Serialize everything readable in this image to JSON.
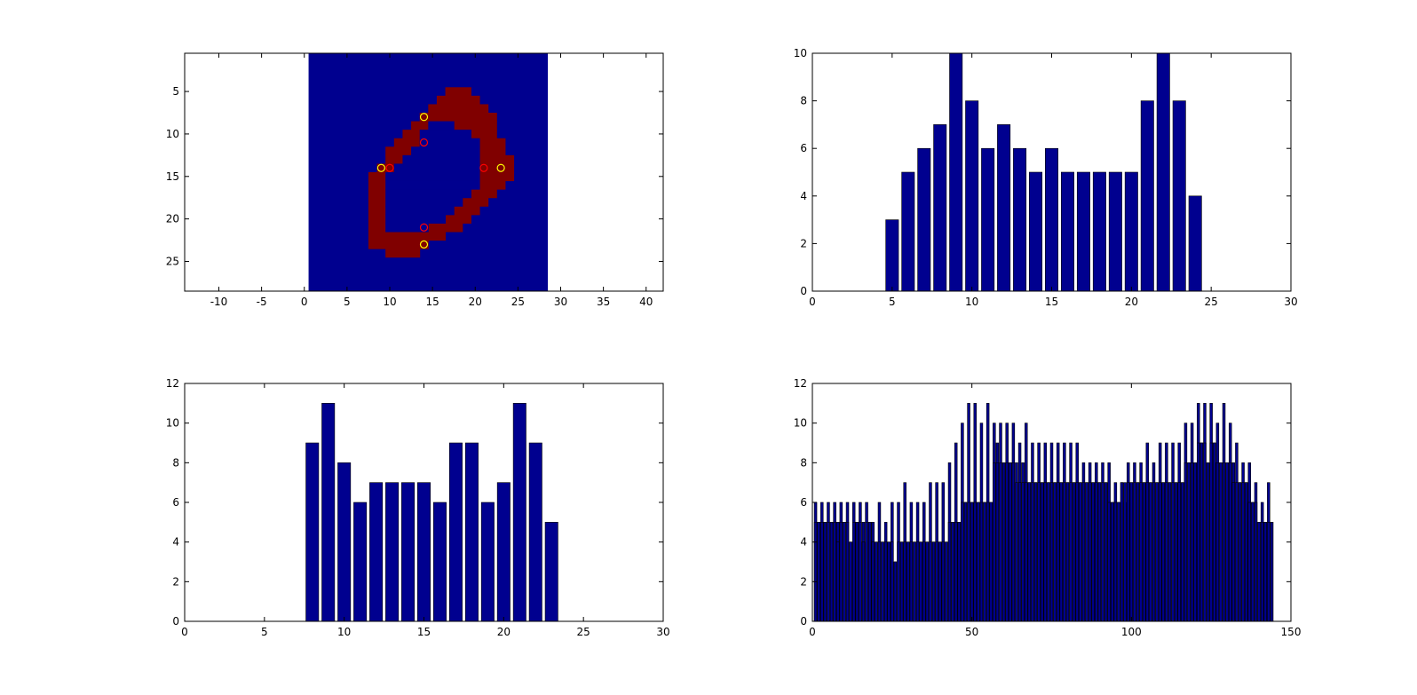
{
  "chart_data": [
    {
      "type": "heatmap",
      "title": "",
      "xlabel": "",
      "ylabel": "",
      "xlim": [
        -14,
        42
      ],
      "ylim": [
        28.5,
        0.5
      ],
      "y_reversed": true,
      "image_extent": {
        "x": [
          0.5,
          28.5
        ],
        "y": [
          0.5,
          28.5
        ]
      },
      "x_ticks": [
        "-10",
        "-5",
        "0",
        "5",
        "10",
        "15",
        "20",
        "25",
        "30",
        "35",
        "40"
      ],
      "y_ticks": [
        "5",
        "10",
        "15",
        "20",
        "25"
      ],
      "background_color": "#00008f",
      "mask_color": "#800000",
      "mask_rows": [
        {
          "row": 5,
          "from": 17,
          "to": 19
        },
        {
          "row": 6,
          "from": 16,
          "to": 20
        },
        {
          "row": 7,
          "from": 15,
          "to": 21
        },
        {
          "row": 8,
          "from": 14,
          "to": 22
        },
        {
          "row": 9,
          "from": 13,
          "to": 22
        },
        {
          "row": 10,
          "from": 12,
          "to": 22
        },
        {
          "row": 11,
          "from": 11,
          "to": 23
        },
        {
          "row": 12,
          "from": 10,
          "to": 23
        },
        {
          "row": 13,
          "from": 10,
          "to": 24
        },
        {
          "row": 14,
          "from": 9,
          "to": 24
        },
        {
          "row": 15,
          "from": 8,
          "to": 24
        },
        {
          "row": 16,
          "from": 8,
          "to": 23
        },
        {
          "row": 17,
          "from": 8,
          "to": 22
        },
        {
          "row": 18,
          "from": 8,
          "to": 21
        },
        {
          "row": 19,
          "from": 8,
          "to": 20
        },
        {
          "row": 20,
          "from": 8,
          "to": 19
        },
        {
          "row": 21,
          "from": 8,
          "to": 18
        },
        {
          "row": 22,
          "from": 8,
          "to": 16
        },
        {
          "row": 23,
          "from": 8,
          "to": 14
        },
        {
          "row": 24,
          "from": 10,
          "to": 13
        }
      ],
      "mask_holes": [
        {
          "row": 9,
          "from": 15,
          "to": 17
        },
        {
          "row": 10,
          "from": 14,
          "to": 19
        },
        {
          "row": 11,
          "from": 14,
          "to": 20
        },
        {
          "row": 12,
          "from": 13,
          "to": 20
        },
        {
          "row": 13,
          "from": 12,
          "to": 20
        },
        {
          "row": 14,
          "from": 11,
          "to": 20
        },
        {
          "row": 15,
          "from": 10,
          "to": 20
        },
        {
          "row": 16,
          "from": 10,
          "to": 20
        },
        {
          "row": 17,
          "from": 10,
          "to": 19
        },
        {
          "row": 18,
          "from": 10,
          "to": 18
        },
        {
          "row": 19,
          "from": 10,
          "to": 17
        },
        {
          "row": 20,
          "from": 10,
          "to": 16
        },
        {
          "row": 21,
          "from": 10,
          "to": 14
        }
      ],
      "markers": [
        {
          "x": 14,
          "y": 8,
          "color": "#ffff00"
        },
        {
          "x": 14,
          "y": 11,
          "color": "#ff0000"
        },
        {
          "x": 9,
          "y": 14,
          "color": "#ffff00"
        },
        {
          "x": 10,
          "y": 14,
          "color": "#ff0000"
        },
        {
          "x": 21,
          "y": 14,
          "color": "#ff0000"
        },
        {
          "x": 23,
          "y": 14,
          "color": "#ffff00"
        },
        {
          "x": 14,
          "y": 21,
          "color": "#ff0000"
        },
        {
          "x": 14,
          "y": 23,
          "color": "#ffff00"
        }
      ]
    },
    {
      "type": "bar",
      "title": "",
      "xlabel": "",
      "ylabel": "",
      "xlim": [
        0,
        30
      ],
      "ylim": [
        0,
        10
      ],
      "x_ticks": [
        "0",
        "5",
        "10",
        "15",
        "20",
        "25",
        "30"
      ],
      "y_ticks": [
        "0",
        "2",
        "4",
        "6",
        "8",
        "10"
      ],
      "bar_color": "#00008f",
      "bar_width": 0.8,
      "x": [
        5,
        6,
        7,
        8,
        9,
        10,
        11,
        12,
        13,
        14,
        15,
        16,
        17,
        18,
        19,
        20,
        21,
        22,
        23,
        24
      ],
      "values": [
        3,
        5,
        6,
        7,
        10,
        8,
        6,
        7,
        6,
        5,
        6,
        5,
        5,
        5,
        5,
        5,
        8,
        10,
        8,
        4
      ]
    },
    {
      "type": "bar",
      "title": "",
      "xlabel": "",
      "ylabel": "",
      "xlim": [
        0,
        30
      ],
      "ylim": [
        0,
        12
      ],
      "x_ticks": [
        "0",
        "5",
        "10",
        "15",
        "20",
        "25",
        "30"
      ],
      "y_ticks": [
        "0",
        "2",
        "4",
        "6",
        "8",
        "10",
        "12"
      ],
      "bar_color": "#00008f",
      "bar_width": 0.8,
      "x": [
        8,
        9,
        10,
        11,
        12,
        13,
        14,
        15,
        16,
        17,
        18,
        19,
        20,
        21,
        22,
        23
      ],
      "values": [
        9,
        11,
        8,
        6,
        7,
        7,
        7,
        7,
        6,
        9,
        9,
        6,
        7,
        11,
        9,
        5
      ]
    },
    {
      "type": "bar",
      "title": "",
      "xlabel": "",
      "ylabel": "",
      "xlim": [
        0,
        150
      ],
      "ylim": [
        0,
        12
      ],
      "x_ticks": [
        "0",
        "50",
        "100",
        "150"
      ],
      "y_ticks": [
        "0",
        "2",
        "4",
        "6",
        "8",
        "10",
        "12"
      ],
      "bar_color": "#00008f",
      "bar_width": 0.8,
      "x_start": 1,
      "values": [
        6,
        5,
        6,
        5,
        6,
        5,
        6,
        5,
        6,
        5,
        6,
        4,
        6,
        5,
        6,
        5,
        6,
        5,
        5,
        4,
        6,
        4,
        5,
        4,
        6,
        3,
        6,
        4,
        7,
        4,
        6,
        4,
        6,
        4,
        6,
        4,
        7,
        4,
        7,
        4,
        7,
        4,
        8,
        5,
        9,
        5,
        10,
        6,
        11,
        6,
        11,
        6,
        10,
        6,
        11,
        6,
        10,
        9,
        10,
        8,
        10,
        8,
        10,
        8,
        9,
        8,
        10,
        7,
        9,
        7,
        9,
        7,
        9,
        7,
        9,
        7,
        9,
        7,
        9,
        7,
        9,
        7,
        9,
        7,
        8,
        7,
        8,
        7,
        8,
        7,
        8,
        7,
        8,
        6,
        7,
        6,
        7,
        6,
        8,
        7,
        8,
        7,
        8,
        7,
        9,
        7,
        8,
        7,
        9,
        7,
        9,
        7,
        9,
        7,
        9,
        7,
        10,
        8,
        10,
        8,
        11,
        9,
        11,
        8,
        11,
        9,
        10,
        8,
        11,
        8,
        10,
        8,
        9,
        7,
        8,
        7,
        8,
        6,
        7,
        5,
        6,
        5,
        7,
        5
      ],
      "overlay_values": [
        5,
        5,
        5,
        5,
        5,
        5,
        5,
        4,
        5,
        5,
        5,
        4,
        5,
        5,
        5,
        4,
        5,
        5,
        4,
        4,
        4,
        4,
        4,
        4,
        4,
        3,
        4,
        4,
        4,
        4,
        4,
        4,
        4,
        4,
        4,
        4,
        4,
        4,
        4,
        4,
        4,
        4,
        5,
        5,
        5,
        5,
        6,
        6,
        6,
        6,
        6,
        6,
        6,
        6,
        6,
        6,
        8,
        8,
        8,
        8,
        8,
        8,
        8,
        7,
        7,
        7,
        7,
        7,
        7,
        7,
        7,
        7,
        7,
        7,
        7,
        7,
        7,
        7,
        7,
        7,
        7,
        7,
        7,
        7,
        7,
        7,
        7,
        7,
        7,
        7,
        7,
        7,
        6,
        6,
        6,
        6,
        7,
        7,
        7,
        7,
        7,
        7,
        7,
        7,
        7,
        7,
        7,
        7,
        7,
        7,
        7,
        7,
        7,
        7,
        7,
        7,
        8,
        8,
        8,
        8,
        9,
        9,
        9,
        8,
        9,
        9,
        8,
        8,
        8,
        8,
        8,
        7,
        7,
        7,
        7,
        7,
        6,
        6,
        6,
        5,
        5,
        5,
        5,
        5
      ]
    }
  ]
}
